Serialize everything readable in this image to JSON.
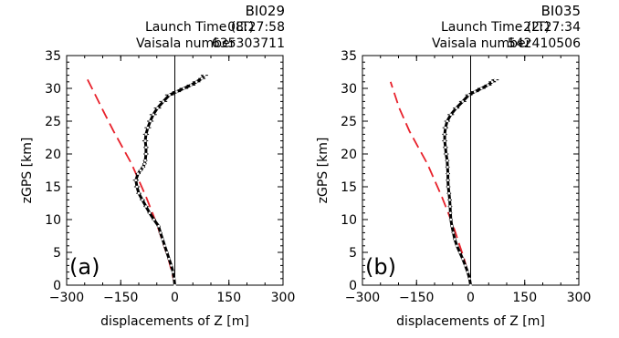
{
  "colors": {
    "profile": "#000000",
    "model": "#e8212b",
    "axes": "#000000"
  },
  "chart_data": [
    {
      "type": "line",
      "panel_label": "(a)",
      "header": {
        "sonde": "BI029",
        "launch_label": "Launch Time (LT)",
        "launch_time": "08:27:58",
        "vaisala_label": "Vaisala number",
        "vaisala_number": "635303711"
      },
      "xlabel": "displacements of Z [m]",
      "ylabel": "zGPS [km]",
      "xlim": [
        -300,
        300
      ],
      "ylim": [
        0,
        35
      ],
      "xticks": [
        -300,
        -150,
        0,
        150,
        300
      ],
      "yticks": [
        0,
        5,
        10,
        15,
        20,
        25,
        30,
        35
      ],
      "zero_line_x": 0,
      "series": [
        {
          "style": "black line with error bars",
          "x": [
            0,
            -2,
            -5,
            -10,
            -16,
            -22,
            -28,
            -34,
            -40,
            -45,
            -58,
            -70,
            -80,
            -90,
            -100,
            -105,
            -108,
            -102,
            -95,
            -88,
            -84,
            -82,
            -80,
            -80,
            -82,
            -80,
            -75,
            -68,
            -60,
            -48,
            -32,
            -15,
            5,
            25,
            45,
            60,
            75,
            82
          ],
          "y": [
            0,
            1,
            2,
            3,
            4,
            5,
            6,
            7,
            8,
            9,
            10,
            11,
            12,
            13,
            14,
            15,
            16,
            17,
            17.5,
            18,
            18.5,
            19,
            20,
            21,
            22,
            23,
            24,
            25,
            26,
            27,
            28,
            29,
            29.5,
            30,
            30.5,
            31,
            31.5,
            32
          ],
          "err": [
            2,
            3,
            3,
            3,
            4,
            4,
            4,
            4,
            5,
            5,
            6,
            6,
            7,
            7,
            7,
            8,
            8,
            7,
            6,
            6,
            6,
            6,
            7,
            7,
            8,
            8,
            9,
            9,
            10,
            10,
            11,
            12,
            12,
            12,
            12,
            11,
            10,
            10
          ]
        },
        {
          "style": "red dashed model curve",
          "x": [
            0,
            -8,
            -18,
            -30,
            -45,
            -62,
            -80,
            -100,
            -120,
            -145,
            -170,
            -198,
            -225,
            -248
          ],
          "y": [
            0,
            2,
            4,
            6,
            8.5,
            11,
            13.5,
            16,
            18.5,
            21,
            23.5,
            26.5,
            29.5,
            32
          ]
        }
      ]
    },
    {
      "type": "line",
      "panel_label": "(b)",
      "header": {
        "sonde": "BI035",
        "launch_label": "Launch Time (LT)",
        "launch_time": "22:27:34",
        "vaisala_label": "Vaisala number",
        "vaisala_number": "542410506"
      },
      "xlabel": "displacements of Z [m]",
      "ylabel": "zGPS [km]",
      "xlim": [
        -300,
        300
      ],
      "ylim": [
        0,
        35
      ],
      "xticks": [
        -300,
        -150,
        0,
        150,
        300
      ],
      "yticks": [
        0,
        5,
        10,
        15,
        20,
        25,
        30,
        35
      ],
      "zero_line_x": 0,
      "series": [
        {
          "style": "black line with error bars",
          "x": [
            0,
            -3,
            -8,
            -15,
            -22,
            -30,
            -38,
            -44,
            -48,
            -52,
            -55,
            -56,
            -57,
            -58,
            -60,
            -62,
            -63,
            -63,
            -64,
            -65,
            -68,
            -70,
            -72,
            -72,
            -70,
            -65,
            -55,
            -40,
            -22,
            -5,
            12,
            30,
            48,
            60,
            68
          ],
          "y": [
            0,
            1,
            2,
            3,
            4,
            5,
            6,
            7,
            8,
            9,
            10,
            11,
            12,
            13,
            14,
            15,
            16,
            17,
            18,
            19,
            20,
            21,
            22,
            23,
            24,
            25,
            26,
            27,
            28,
            29,
            29.5,
            30,
            30.5,
            31,
            31.3
          ],
          "err": [
            2,
            3,
            3,
            3,
            4,
            4,
            4,
            5,
            5,
            5,
            5,
            5,
            6,
            6,
            6,
            6,
            6,
            6,
            6,
            6,
            7,
            7,
            7,
            7,
            8,
            8,
            9,
            9,
            10,
            10,
            11,
            11,
            10,
            10,
            10
          ]
        },
        {
          "style": "red dashed model curve",
          "x": [
            0,
            -8,
            -18,
            -30,
            -45,
            -62,
            -80,
            -100,
            -120,
            -145,
            -170,
            -198,
            -222
          ],
          "y": [
            0,
            2,
            4,
            6,
            8.5,
            11,
            13.5,
            16,
            18.5,
            21,
            23.5,
            27,
            31
          ]
        }
      ]
    }
  ]
}
